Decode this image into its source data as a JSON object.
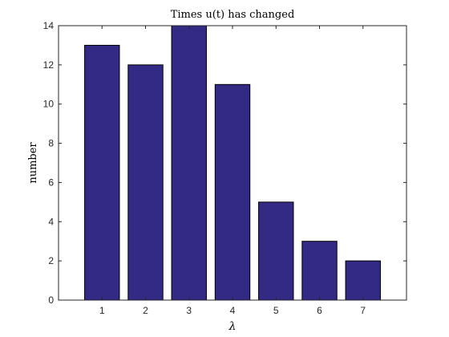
{
  "chart_data": {
    "type": "bar",
    "title": "Times u(t) has changed",
    "xlabel": "λ",
    "ylabel": "number",
    "categories": [
      "1",
      "2",
      "3",
      "4",
      "5",
      "6",
      "7"
    ],
    "values": [
      13,
      12,
      14,
      11,
      5,
      3,
      2
    ],
    "xlim": [
      0,
      8
    ],
    "ylim": [
      0,
      14
    ],
    "yticks": [
      "0",
      "2",
      "4",
      "6",
      "8",
      "10",
      "12",
      "14"
    ],
    "grid": false,
    "bar_color": "#332a85",
    "bar_edge_color": "#000000"
  }
}
